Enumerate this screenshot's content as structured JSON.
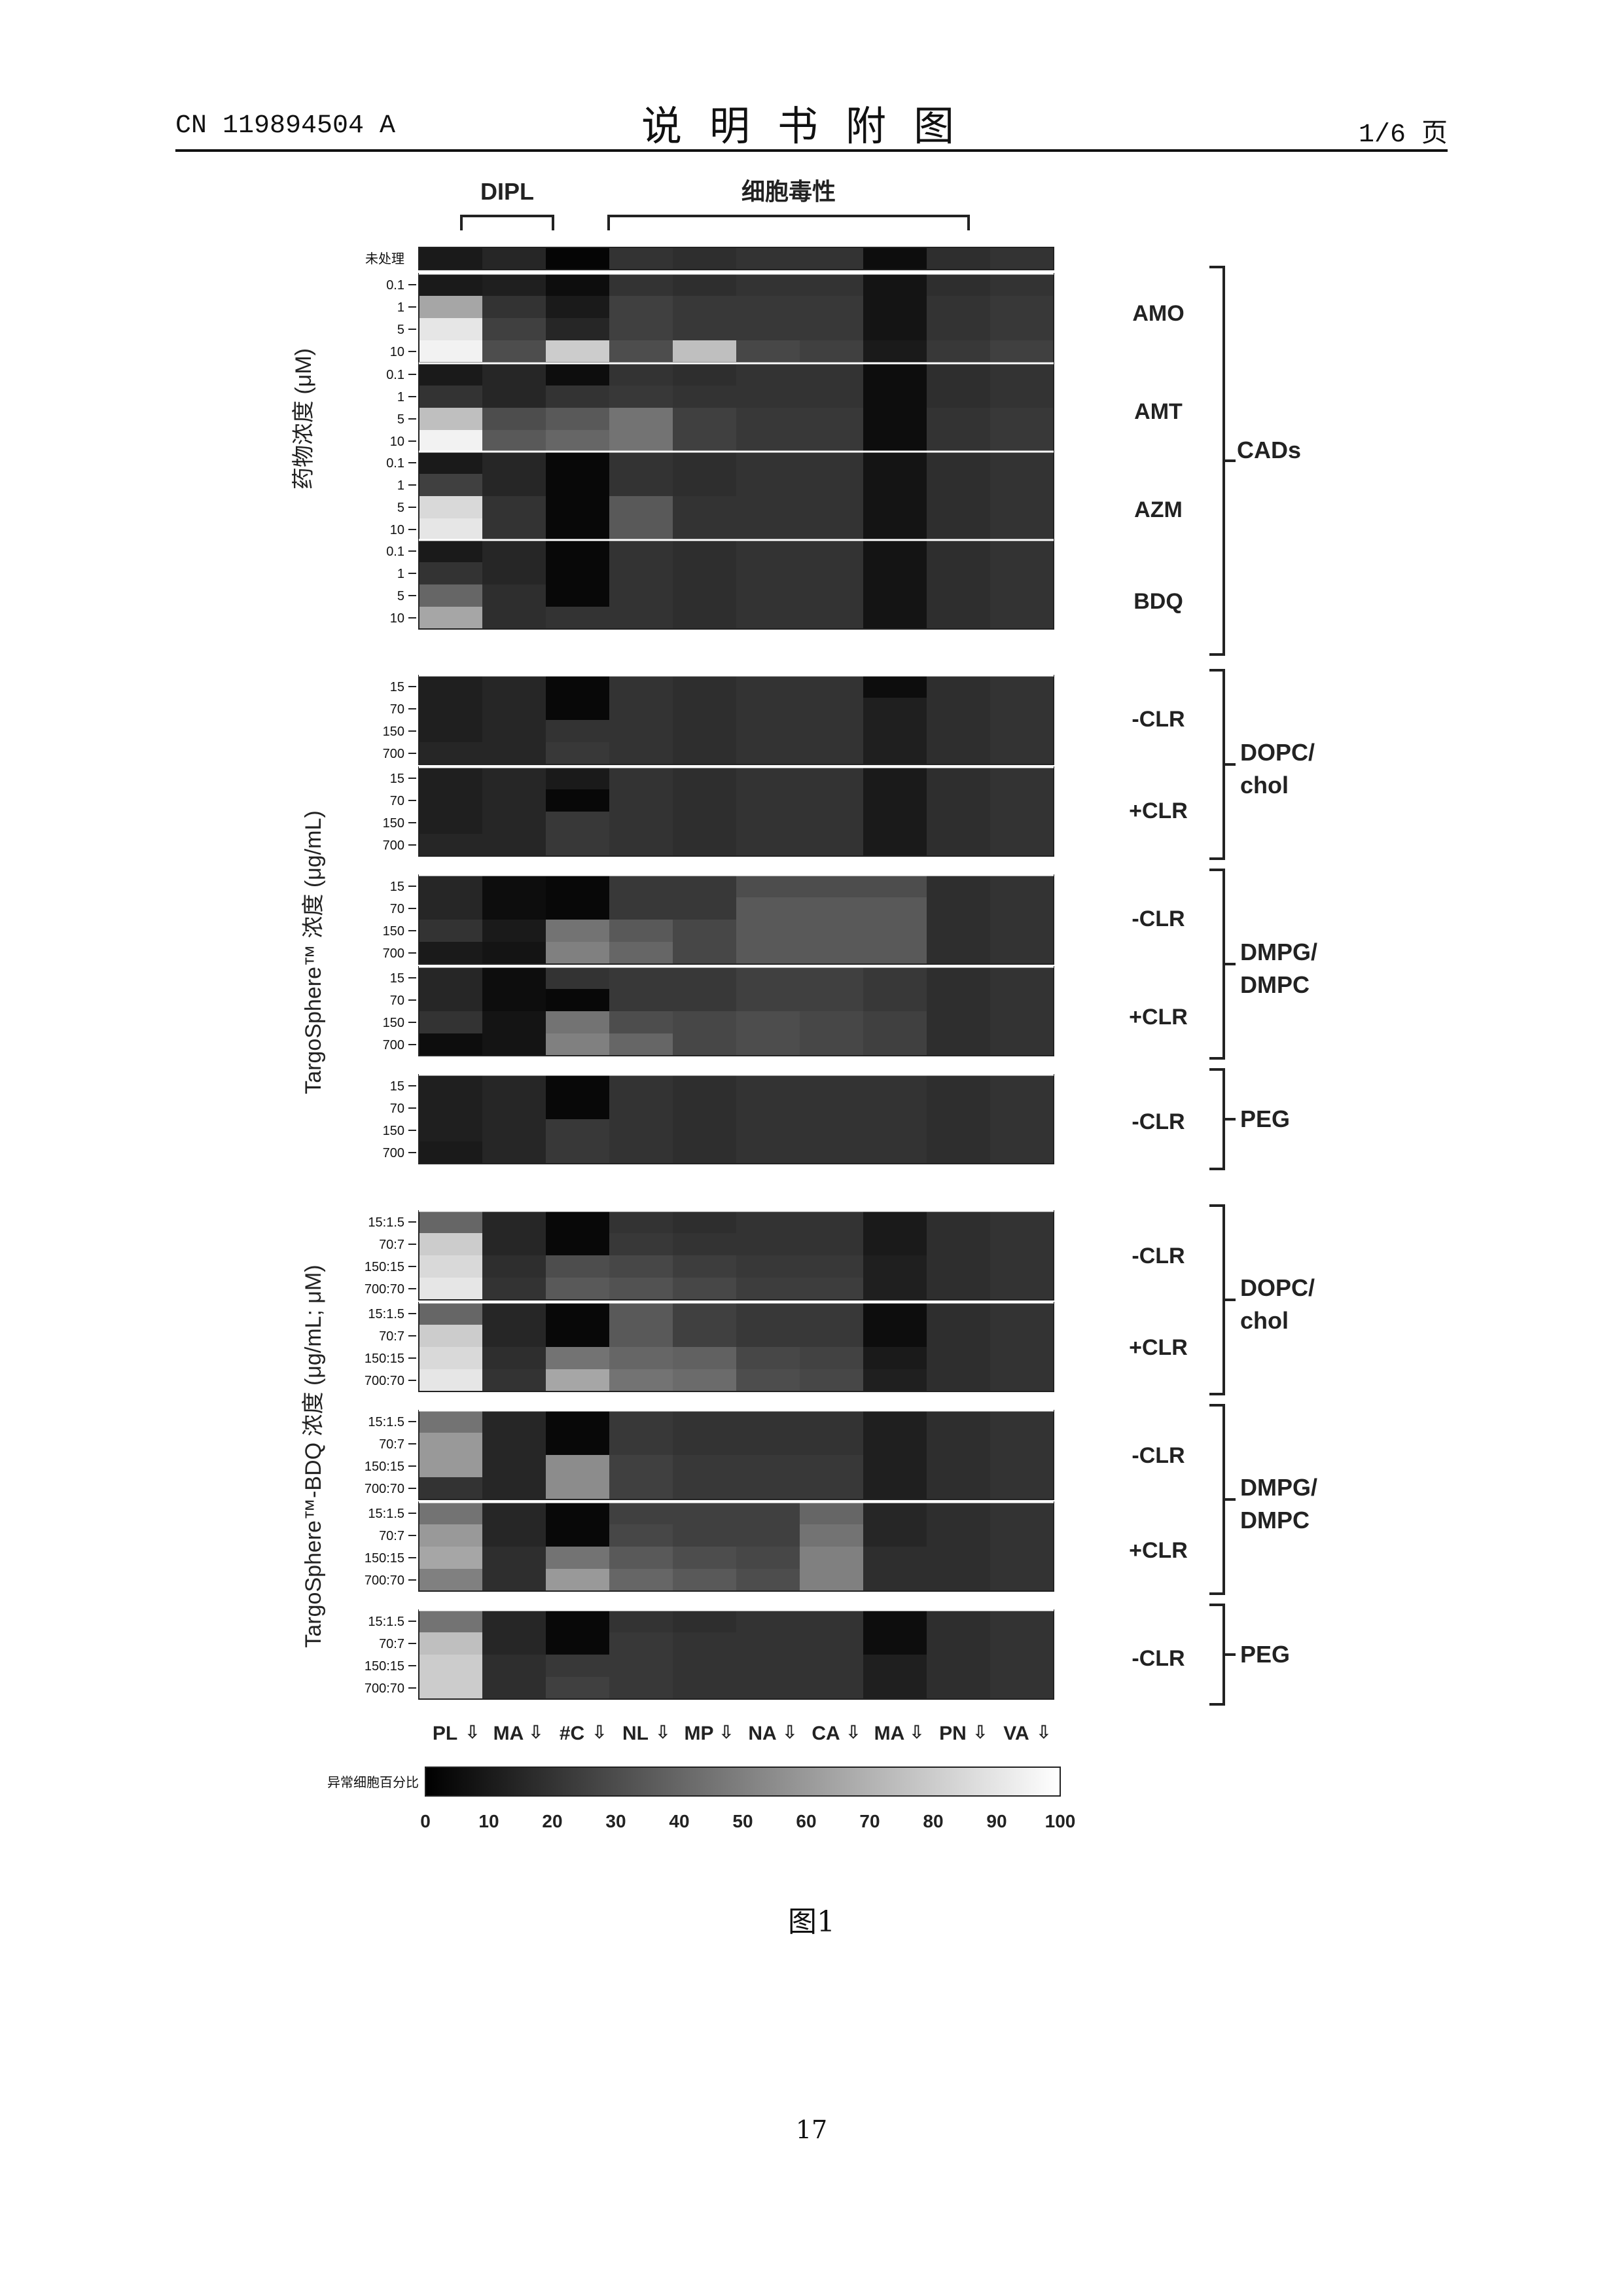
{
  "header": {
    "doc_number": "CN 119894504 A",
    "title": "说明书附图",
    "page_of": "1/6 页"
  },
  "figure": {
    "caption": "图1",
    "page_number": "17",
    "top_group_labels": [
      "DIPL",
      "细胞毒性"
    ],
    "column_labels": [
      "PL",
      "MA",
      "#C",
      "NL",
      "MP",
      "NA",
      "CA",
      "MA",
      "PN",
      "VA"
    ],
    "color_bar": {
      "label": "异常细胞百分比",
      "ticks": [
        "0",
        "10",
        "20",
        "30",
        "40",
        "50",
        "60",
        "70",
        "80",
        "90",
        "100"
      ]
    },
    "y_axis_labels": {
      "cads": "药物浓度 (μM)",
      "targo": "TargoSphere™ 浓度 (μg/mL)",
      "targo_bdq": "TargoSphere™-BDQ 浓度 (μg/mL; μM)"
    },
    "untreated_label": "未处理",
    "cads_row_labels": [
      "0.1",
      "1",
      "5",
      "10"
    ],
    "targo_row_labels": [
      "15",
      "70",
      "150",
      "700"
    ],
    "bdq_row_labels": [
      "15:1.5",
      "70:7",
      "150:15",
      "700:70"
    ],
    "cads_drugs": [
      "AMO",
      "AMT",
      "AZM",
      "BDQ"
    ],
    "cads_group": "CADs",
    "panel_labels": {
      "minus_clr": "-CLR",
      "plus_clr": "+CLR",
      "dopc": [
        "DOPC/",
        "chol"
      ],
      "dmpg": [
        "DMPG/",
        "DMPC"
      ],
      "peg": "PEG"
    }
  },
  "chart_data": {
    "type": "heatmap",
    "title": "",
    "columns": [
      "PL",
      "MA",
      "#C",
      "NL",
      "MP",
      "NA",
      "CA",
      "MA",
      "PN",
      "VA"
    ],
    "value_unit": "异常细胞百分比",
    "range": [
      0,
      100
    ],
    "colorscale": "black (0) to white (100)",
    "untreated": [
      10,
      15,
      2,
      20,
      18,
      20,
      20,
      5,
      18,
      20
    ],
    "panels": [
      {
        "section": "CADs",
        "drug": "AMO",
        "rows": [
          "0.1",
          "1",
          "5",
          "10"
        ],
        "values": [
          [
            10,
            12,
            5,
            20,
            18,
            20,
            20,
            8,
            18,
            20
          ],
          [
            65,
            20,
            10,
            25,
            22,
            22,
            22,
            8,
            20,
            22
          ],
          [
            90,
            25,
            15,
            25,
            22,
            22,
            22,
            8,
            20,
            22
          ],
          [
            95,
            30,
            80,
            30,
            75,
            28,
            25,
            10,
            22,
            25
          ]
        ]
      },
      {
        "section": "CADs",
        "drug": "AMT",
        "rows": [
          "0.1",
          "1",
          "5",
          "10"
        ],
        "values": [
          [
            10,
            15,
            5,
            20,
            18,
            20,
            20,
            5,
            18,
            20
          ],
          [
            20,
            15,
            20,
            22,
            20,
            20,
            20,
            5,
            18,
            20
          ],
          [
            75,
            30,
            35,
            45,
            25,
            22,
            22,
            5,
            20,
            22
          ],
          [
            95,
            35,
            40,
            45,
            25,
            22,
            22,
            5,
            20,
            22
          ]
        ]
      },
      {
        "section": "CADs",
        "drug": "AZM",
        "rows": [
          "0.1",
          "1",
          "5",
          "10"
        ],
        "values": [
          [
            10,
            15,
            3,
            20,
            18,
            20,
            20,
            8,
            18,
            20
          ],
          [
            25,
            15,
            3,
            20,
            18,
            20,
            20,
            8,
            18,
            20
          ],
          [
            85,
            20,
            3,
            35,
            20,
            20,
            20,
            8,
            18,
            20
          ],
          [
            90,
            20,
            3,
            35,
            20,
            20,
            20,
            8,
            18,
            20
          ]
        ]
      },
      {
        "section": "CADs",
        "drug": "BDQ",
        "rows": [
          "0.1",
          "1",
          "5",
          "10"
        ],
        "values": [
          [
            10,
            15,
            3,
            20,
            18,
            20,
            20,
            8,
            18,
            20
          ],
          [
            20,
            15,
            3,
            20,
            18,
            20,
            20,
            8,
            18,
            20
          ],
          [
            40,
            18,
            3,
            20,
            18,
            20,
            20,
            8,
            18,
            20
          ],
          [
            65,
            18,
            20,
            20,
            18,
            20,
            20,
            8,
            18,
            20
          ]
        ]
      },
      {
        "section": "TargoSphere",
        "formulation": "DOPC/chol",
        "clr": "-CLR",
        "rows": [
          "15",
          "70",
          "150",
          "700"
        ],
        "values": [
          [
            12,
            15,
            3,
            20,
            18,
            20,
            20,
            5,
            18,
            20
          ],
          [
            12,
            15,
            3,
            20,
            18,
            20,
            20,
            12,
            18,
            20
          ],
          [
            12,
            15,
            20,
            20,
            18,
            20,
            20,
            12,
            18,
            20
          ],
          [
            15,
            15,
            22,
            20,
            18,
            20,
            20,
            12,
            18,
            20
          ]
        ]
      },
      {
        "section": "TargoSphere",
        "formulation": "DOPC/chol",
        "clr": "+CLR",
        "rows": [
          "15",
          "70",
          "150",
          "700"
        ],
        "values": [
          [
            12,
            15,
            10,
            20,
            18,
            20,
            20,
            10,
            18,
            20
          ],
          [
            12,
            15,
            3,
            20,
            18,
            20,
            20,
            10,
            18,
            20
          ],
          [
            12,
            15,
            22,
            20,
            18,
            20,
            20,
            10,
            18,
            20
          ],
          [
            15,
            15,
            22,
            20,
            18,
            20,
            20,
            10,
            18,
            20
          ]
        ]
      },
      {
        "section": "TargoSphere",
        "formulation": "DMPG/DMPC",
        "clr": "-CLR",
        "rows": [
          "15",
          "70",
          "150",
          "700"
        ],
        "values": [
          [
            15,
            5,
            3,
            22,
            22,
            30,
            30,
            30,
            18,
            20
          ],
          [
            15,
            5,
            3,
            22,
            22,
            35,
            35,
            35,
            18,
            20
          ],
          [
            20,
            10,
            45,
            35,
            28,
            35,
            35,
            35,
            18,
            20
          ],
          [
            10,
            8,
            50,
            40,
            28,
            35,
            35,
            35,
            18,
            20
          ]
        ]
      },
      {
        "section": "TargoSphere",
        "formulation": "DMPG/DMPC",
        "clr": "+CLR",
        "rows": [
          "15",
          "70",
          "150",
          "700"
        ],
        "values": [
          [
            15,
            5,
            20,
            22,
            22,
            25,
            25,
            22,
            18,
            20
          ],
          [
            15,
            5,
            3,
            22,
            22,
            25,
            25,
            22,
            18,
            20
          ],
          [
            20,
            8,
            45,
            30,
            28,
            30,
            28,
            25,
            18,
            20
          ],
          [
            5,
            8,
            50,
            40,
            28,
            30,
            28,
            25,
            18,
            20
          ]
        ]
      },
      {
        "section": "TargoSphere",
        "formulation": "PEG",
        "clr": "-CLR",
        "rows": [
          "15",
          "70",
          "150",
          "700"
        ],
        "values": [
          [
            12,
            15,
            3,
            20,
            18,
            20,
            20,
            20,
            18,
            20
          ],
          [
            12,
            15,
            3,
            20,
            18,
            20,
            20,
            20,
            18,
            20
          ],
          [
            12,
            15,
            22,
            20,
            18,
            20,
            20,
            20,
            18,
            20
          ],
          [
            10,
            15,
            22,
            20,
            18,
            20,
            20,
            20,
            18,
            20
          ]
        ]
      },
      {
        "section": "TargoSphere-BDQ",
        "formulation": "DOPC/chol",
        "clr": "-CLR",
        "rows": [
          "15:1.5",
          "70:7",
          "150:15",
          "700:70"
        ],
        "values": [
          [
            40,
            15,
            3,
            20,
            18,
            20,
            20,
            10,
            18,
            20
          ],
          [
            80,
            15,
            3,
            22,
            20,
            20,
            20,
            10,
            18,
            20
          ],
          [
            85,
            18,
            30,
            28,
            24,
            22,
            22,
            12,
            18,
            20
          ],
          [
            90,
            20,
            35,
            32,
            28,
            24,
            24,
            12,
            18,
            20
          ]
        ]
      },
      {
        "section": "TargoSphere-BDQ",
        "formulation": "DOPC/chol",
        "clr": "+CLR",
        "rows": [
          "15:1.5",
          "70:7",
          "150:15",
          "700:70"
        ],
        "values": [
          [
            40,
            15,
            3,
            35,
            25,
            22,
            22,
            5,
            18,
            20
          ],
          [
            80,
            15,
            3,
            35,
            25,
            22,
            22,
            5,
            18,
            20
          ],
          [
            85,
            18,
            45,
            40,
            38,
            28,
            26,
            10,
            18,
            20
          ],
          [
            90,
            20,
            65,
            45,
            42,
            30,
            28,
            12,
            18,
            20
          ]
        ]
      },
      {
        "section": "TargoSphere-BDQ",
        "formulation": "DMPG/DMPC",
        "clr": "-CLR",
        "rows": [
          "15:1.5",
          "70:7",
          "150:15",
          "700:70"
        ],
        "values": [
          [
            45,
            15,
            3,
            22,
            20,
            20,
            20,
            12,
            18,
            20
          ],
          [
            60,
            15,
            3,
            22,
            20,
            20,
            20,
            12,
            18,
            20
          ],
          [
            60,
            15,
            55,
            25,
            22,
            22,
            22,
            12,
            18,
            20
          ],
          [
            20,
            15,
            55,
            25,
            22,
            22,
            22,
            12,
            18,
            20
          ]
        ]
      },
      {
        "section": "TargoSphere-BDQ",
        "formulation": "DMPG/DMPC",
        "clr": "+CLR",
        "rows": [
          "15:1.5",
          "70:7",
          "150:15",
          "700:70"
        ],
        "values": [
          [
            45,
            15,
            3,
            25,
            25,
            25,
            40,
            15,
            18,
            20
          ],
          [
            60,
            15,
            3,
            28,
            25,
            25,
            45,
            15,
            18,
            20
          ],
          [
            65,
            18,
            45,
            35,
            30,
            28,
            50,
            18,
            18,
            20
          ],
          [
            50,
            18,
            60,
            40,
            35,
            30,
            50,
            18,
            18,
            20
          ]
        ]
      },
      {
        "section": "TargoSphere-BDQ",
        "formulation": "PEG",
        "clr": "-CLR",
        "rows": [
          "15:1.5",
          "70:7",
          "150:15",
          "700:70"
        ],
        "values": [
          [
            45,
            15,
            3,
            20,
            18,
            20,
            20,
            5,
            18,
            20
          ],
          [
            75,
            15,
            3,
            22,
            20,
            20,
            20,
            5,
            18,
            20
          ],
          [
            80,
            18,
            22,
            22,
            20,
            20,
            20,
            12,
            18,
            20
          ],
          [
            80,
            18,
            25,
            22,
            20,
            20,
            20,
            12,
            18,
            20
          ]
        ]
      }
    ]
  }
}
